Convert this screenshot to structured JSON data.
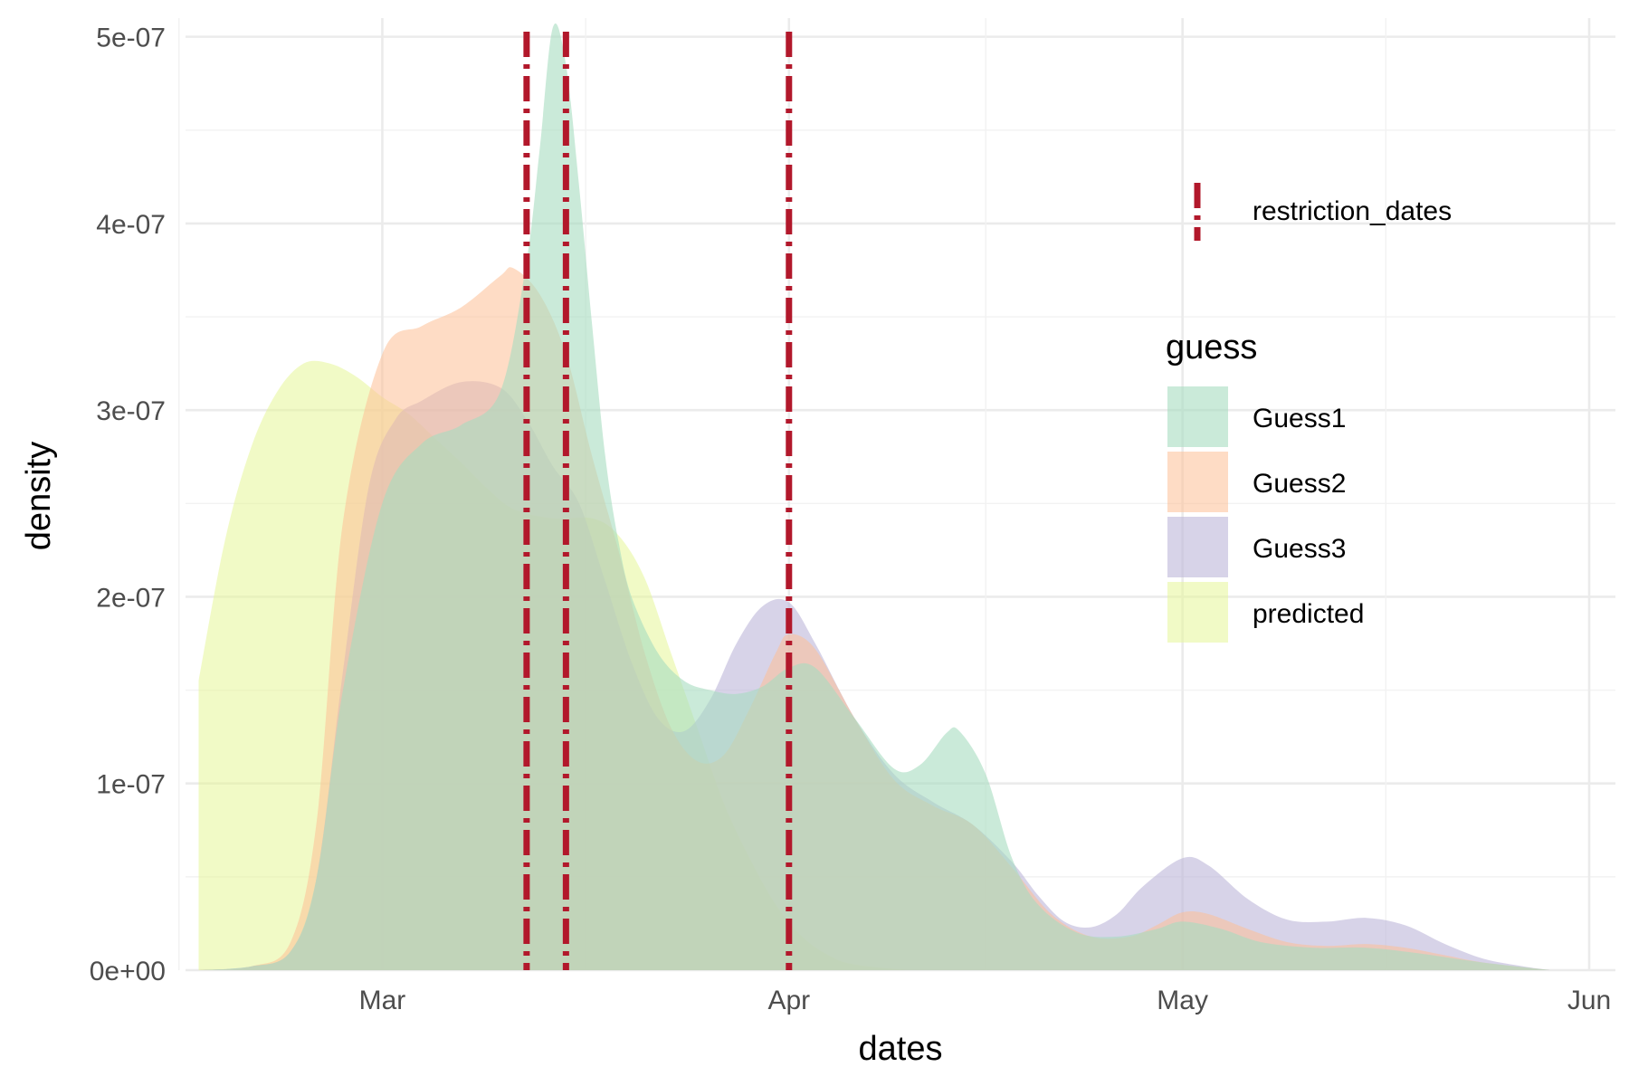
{
  "chart_data": {
    "type": "area",
    "xlabel": "dates",
    "ylabel": "density",
    "x_tick_labels": [
      {
        "date": "2020-03-01",
        "label": "Mar"
      },
      {
        "date": "2020-04-01",
        "label": "Apr"
      },
      {
        "date": "2020-05-01",
        "label": "May"
      },
      {
        "date": "2020-06-01",
        "label": "Jun"
      }
    ],
    "y_tick_labels": [
      {
        "value": 0,
        "label": "0e+00"
      },
      {
        "value": 1e-07,
        "label": "1e-07"
      },
      {
        "value": 2e-07,
        "label": "2e-07"
      },
      {
        "value": 3e-07,
        "label": "3e-07"
      },
      {
        "value": 4e-07,
        "label": "4e-07"
      },
      {
        "value": 5e-07,
        "label": "5e-07"
      }
    ],
    "xlim": [
      "2020-02-15",
      "2020-06-03"
    ],
    "ylim": [
      0,
      5.1e-07
    ],
    "grid": true,
    "legend_position": "right",
    "legend_title": "guess",
    "series": [
      {
        "name": "predicted",
        "color": "#e6f598",
        "opacity": 0.55,
        "points": [
          [
            "2020-02-16",
            1.55e-07
          ],
          [
            "2020-02-18",
            2.3e-07
          ],
          [
            "2020-02-20",
            2.8e-07
          ],
          [
            "2020-02-22",
            3.1e-07
          ],
          [
            "2020-02-24",
            3.25e-07
          ],
          [
            "2020-02-26",
            3.25e-07
          ],
          [
            "2020-02-28",
            3.18e-07
          ],
          [
            "2020-03-01",
            3.07e-07
          ],
          [
            "2020-03-03",
            2.98e-07
          ],
          [
            "2020-03-05",
            2.85e-07
          ],
          [
            "2020-03-07",
            2.72e-07
          ],
          [
            "2020-03-09",
            2.58e-07
          ],
          [
            "2020-03-11",
            2.47e-07
          ],
          [
            "2020-03-14",
            2.42e-07
          ],
          [
            "2020-03-17",
            2.42e-07
          ],
          [
            "2020-03-19",
            2.33e-07
          ],
          [
            "2020-03-21",
            2.1e-07
          ],
          [
            "2020-03-23",
            1.7e-07
          ],
          [
            "2020-03-25",
            1.3e-07
          ],
          [
            "2020-03-27",
            9e-08
          ],
          [
            "2020-03-29",
            6e-08
          ],
          [
            "2020-03-31",
            3.5e-08
          ],
          [
            "2020-04-02",
            1.8e-08
          ],
          [
            "2020-04-04",
            8e-09
          ],
          [
            "2020-04-06",
            3e-09
          ],
          [
            "2020-04-10",
            0
          ]
        ]
      },
      {
        "name": "Guess3",
        "color": "#bcb5d9",
        "opacity": 0.6,
        "points": [
          [
            "2020-02-16",
            0
          ],
          [
            "2020-02-20",
            2e-09
          ],
          [
            "2020-02-23",
            1e-08
          ],
          [
            "2020-02-25",
            5e-08
          ],
          [
            "2020-02-27",
            1.6e-07
          ],
          [
            "2020-02-29",
            2.6e-07
          ],
          [
            "2020-03-02",
            2.95e-07
          ],
          [
            "2020-03-04",
            3.05e-07
          ],
          [
            "2020-03-07",
            3.15e-07
          ],
          [
            "2020-03-10",
            3.12e-07
          ],
          [
            "2020-03-12",
            2.95e-07
          ],
          [
            "2020-03-14",
            2.7e-07
          ],
          [
            "2020-03-16",
            2.5e-07
          ],
          [
            "2020-03-18",
            2.08e-07
          ],
          [
            "2020-03-20",
            1.65e-07
          ],
          [
            "2020-03-22",
            1.35e-07
          ],
          [
            "2020-03-24",
            1.28e-07
          ],
          [
            "2020-03-26",
            1.45e-07
          ],
          [
            "2020-03-28",
            1.75e-07
          ],
          [
            "2020-03-30",
            1.95e-07
          ],
          [
            "2020-04-01",
            1.97e-07
          ],
          [
            "2020-04-03",
            1.75e-07
          ],
          [
            "2020-04-06",
            1.35e-07
          ],
          [
            "2020-04-09",
            1.05e-07
          ],
          [
            "2020-04-12",
            9e-08
          ],
          [
            "2020-04-15",
            7.8e-08
          ],
          [
            "2020-04-18",
            5.8e-08
          ],
          [
            "2020-04-20",
            4e-08
          ],
          [
            "2020-04-22",
            2.6e-08
          ],
          [
            "2020-04-24",
            2.3e-08
          ],
          [
            "2020-04-26",
            3e-08
          ],
          [
            "2020-04-28",
            4.5e-08
          ],
          [
            "2020-05-01",
            6e-08
          ],
          [
            "2020-05-03",
            5.6e-08
          ],
          [
            "2020-05-06",
            3.8e-08
          ],
          [
            "2020-05-09",
            2.7e-08
          ],
          [
            "2020-05-12",
            2.6e-08
          ],
          [
            "2020-05-15",
            2.8e-08
          ],
          [
            "2020-05-18",
            2.4e-08
          ],
          [
            "2020-05-21",
            1.4e-08
          ],
          [
            "2020-05-24",
            6e-09
          ],
          [
            "2020-05-27",
            2e-09
          ],
          [
            "2020-05-29",
            0
          ]
        ]
      },
      {
        "name": "Guess2",
        "color": "#fdbf95",
        "opacity": 0.55,
        "points": [
          [
            "2020-02-16",
            0
          ],
          [
            "2020-02-20",
            2e-09
          ],
          [
            "2020-02-23",
            1.5e-08
          ],
          [
            "2020-02-25",
            8e-08
          ],
          [
            "2020-02-27",
            2.4e-07
          ],
          [
            "2020-03-01",
            3.3e-07
          ],
          [
            "2020-03-04",
            3.45e-07
          ],
          [
            "2020-03-07",
            3.55e-07
          ],
          [
            "2020-03-10",
            3.72e-07
          ],
          [
            "2020-03-11",
            3.76e-07
          ],
          [
            "2020-03-13",
            3.62e-07
          ],
          [
            "2020-03-15",
            3.3e-07
          ],
          [
            "2020-03-17",
            2.75e-07
          ],
          [
            "2020-03-19",
            2.25e-07
          ],
          [
            "2020-03-21",
            1.7e-07
          ],
          [
            "2020-03-23",
            1.3e-07
          ],
          [
            "2020-03-25",
            1.12e-07
          ],
          [
            "2020-03-27",
            1.15e-07
          ],
          [
            "2020-03-29",
            1.4e-07
          ],
          [
            "2020-03-31",
            1.7e-07
          ],
          [
            "2020-04-01",
            1.8e-07
          ],
          [
            "2020-04-03",
            1.72e-07
          ],
          [
            "2020-04-06",
            1.35e-07
          ],
          [
            "2020-04-09",
            1.02e-07
          ],
          [
            "2020-04-12",
            8.8e-08
          ],
          [
            "2020-04-15",
            7.8e-08
          ],
          [
            "2020-04-18",
            5.5e-08
          ],
          [
            "2020-04-21",
            3e-08
          ],
          [
            "2020-04-24",
            1.8e-08
          ],
          [
            "2020-04-27",
            1.8e-08
          ],
          [
            "2020-04-29",
            2.4e-08
          ],
          [
            "2020-05-01",
            3.1e-08
          ],
          [
            "2020-05-03",
            3e-08
          ],
          [
            "2020-05-06",
            2.2e-08
          ],
          [
            "2020-05-09",
            1.5e-08
          ],
          [
            "2020-05-12",
            1.3e-08
          ],
          [
            "2020-05-15",
            1.4e-08
          ],
          [
            "2020-05-18",
            1.2e-08
          ],
          [
            "2020-05-21",
            8e-09
          ],
          [
            "2020-05-24",
            4e-09
          ],
          [
            "2020-05-29",
            0
          ]
        ]
      },
      {
        "name": "Guess1",
        "color": "#a6dcc0",
        "opacity": 0.6,
        "points": [
          [
            "2020-02-16",
            0
          ],
          [
            "2020-02-20",
            2e-09
          ],
          [
            "2020-02-23",
            1e-08
          ],
          [
            "2020-02-25",
            5e-08
          ],
          [
            "2020-02-27",
            1.5e-07
          ],
          [
            "2020-03-01",
            2.5e-07
          ],
          [
            "2020-03-04",
            2.82e-07
          ],
          [
            "2020-03-07",
            2.92e-07
          ],
          [
            "2020-03-10",
            3.1e-07
          ],
          [
            "2020-03-12",
            3.8e-07
          ],
          [
            "2020-03-13",
            4.4e-07
          ],
          [
            "2020-03-14",
            5.05e-07
          ],
          [
            "2020-03-15",
            4.85e-07
          ],
          [
            "2020-03-16",
            4.2e-07
          ],
          [
            "2020-03-17",
            3.45e-07
          ],
          [
            "2020-03-18",
            2.75e-07
          ],
          [
            "2020-03-19",
            2.3e-07
          ],
          [
            "2020-03-20",
            2e-07
          ],
          [
            "2020-03-22",
            1.7e-07
          ],
          [
            "2020-03-24",
            1.55e-07
          ],
          [
            "2020-03-26",
            1.5e-07
          ],
          [
            "2020-03-28",
            1.48e-07
          ],
          [
            "2020-03-30",
            1.52e-07
          ],
          [
            "2020-04-01",
            1.62e-07
          ],
          [
            "2020-04-03",
            1.62e-07
          ],
          [
            "2020-04-06",
            1.35e-07
          ],
          [
            "2020-04-09",
            1.08e-07
          ],
          [
            "2020-04-11",
            1.1e-07
          ],
          [
            "2020-04-13",
            1.27e-07
          ],
          [
            "2020-04-14",
            1.28e-07
          ],
          [
            "2020-04-16",
            1.05e-07
          ],
          [
            "2020-04-18",
            6e-08
          ],
          [
            "2020-04-20",
            3.5e-08
          ],
          [
            "2020-04-23",
            2e-08
          ],
          [
            "2020-04-26",
            1.8e-08
          ],
          [
            "2020-04-29",
            2.2e-08
          ],
          [
            "2020-05-01",
            2.6e-08
          ],
          [
            "2020-05-04",
            2.2e-08
          ],
          [
            "2020-05-07",
            1.5e-08
          ],
          [
            "2020-05-11",
            1.2e-08
          ],
          [
            "2020-05-15",
            1.2e-08
          ],
          [
            "2020-05-19",
            9e-09
          ],
          [
            "2020-05-24",
            4e-09
          ],
          [
            "2020-05-29",
            0
          ]
        ]
      }
    ],
    "vlines": {
      "name": "restriction_dates",
      "color": "#b2182b",
      "dates": [
        "2020-03-12",
        "2020-03-15",
        "2020-04-01"
      ]
    }
  }
}
